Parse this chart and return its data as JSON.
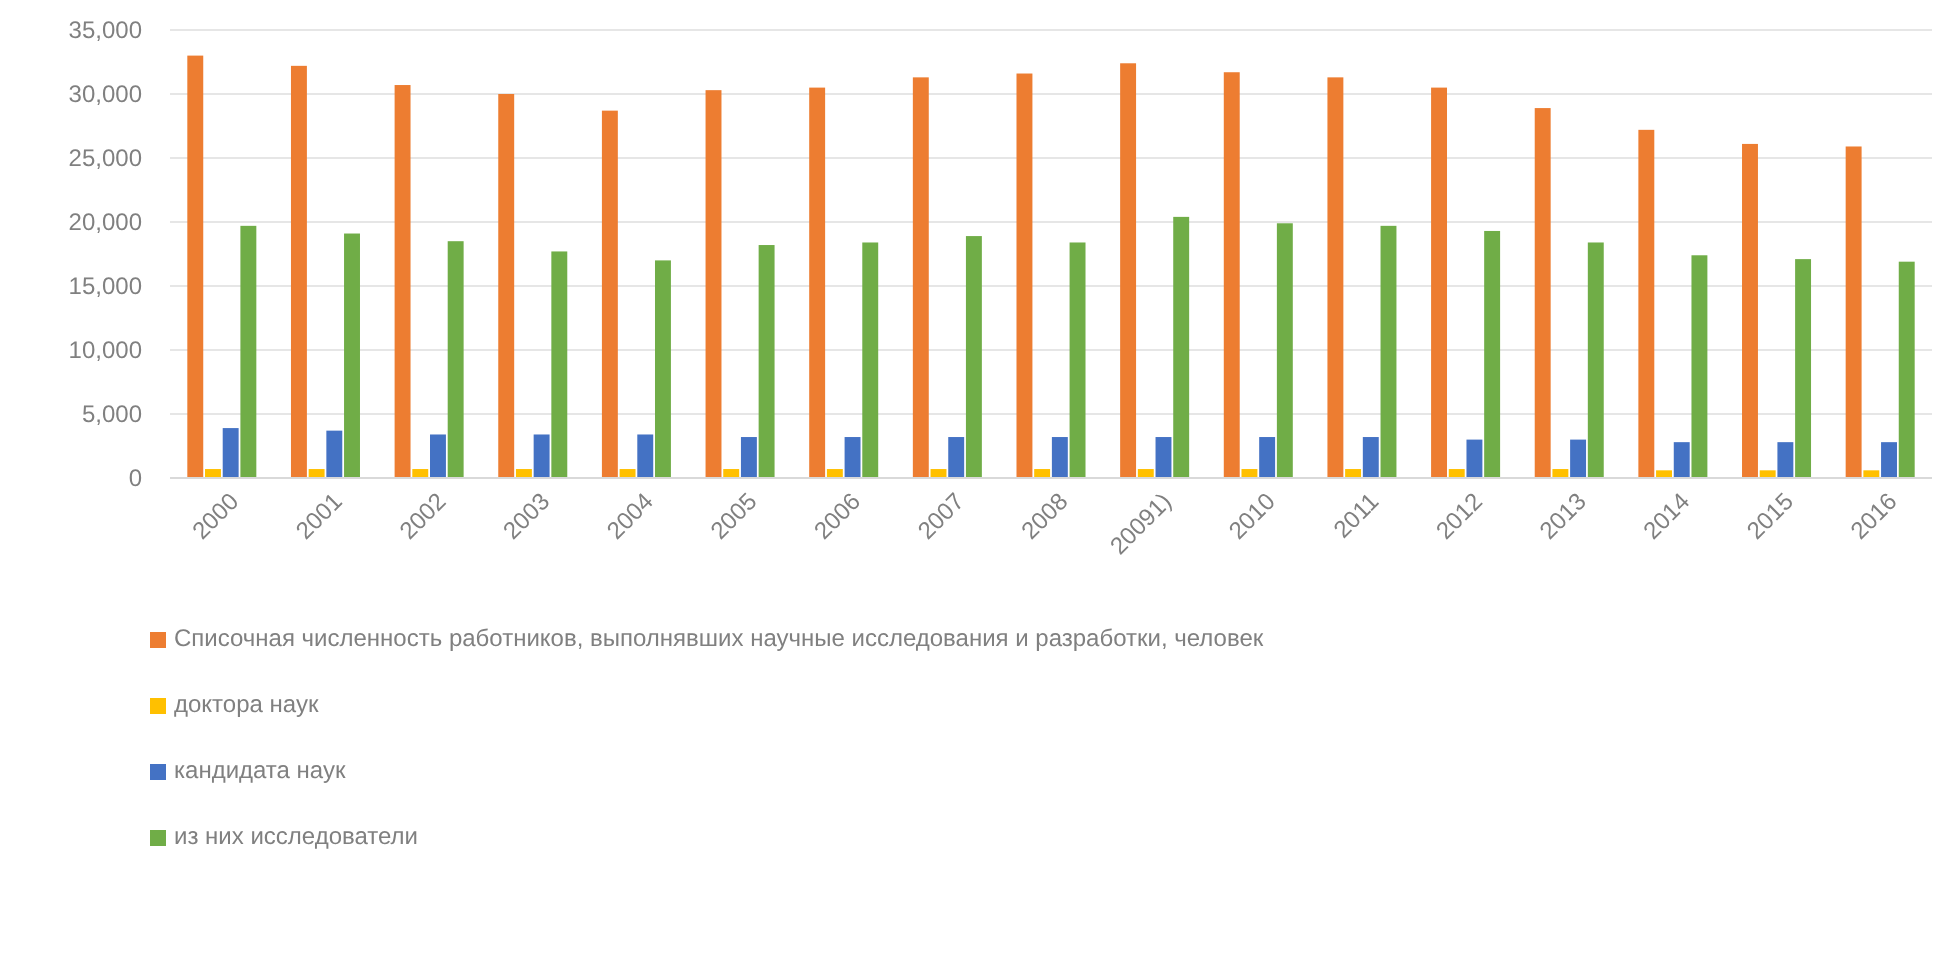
{
  "chart_data": {
    "type": "bar",
    "categories": [
      "2000",
      "2001",
      "2002",
      "2003",
      "2004",
      "2005",
      "2006",
      "2007",
      "2008",
      "20091)",
      "2010",
      "2011",
      "2012",
      "2013",
      "2014",
      "2015",
      "2016"
    ],
    "series": [
      {
        "name": "Списочная численность работников, выполнявших научные исследования и разработки, человек",
        "color": "#ed7d31",
        "values": [
          33000,
          32200,
          30700,
          30000,
          28700,
          30300,
          30500,
          31300,
          31600,
          32400,
          31700,
          31300,
          30500,
          28900,
          27200,
          26100,
          25900
        ]
      },
      {
        "name": "доктора наук",
        "color": "#ffc000",
        "values": [
          700,
          700,
          700,
          700,
          700,
          700,
          700,
          700,
          700,
          700,
          700,
          700,
          700,
          700,
          600,
          600,
          600
        ]
      },
      {
        "name": "кандидата наук",
        "color": "#4472c4",
        "values": [
          3900,
          3700,
          3400,
          3400,
          3400,
          3200,
          3200,
          3200,
          3200,
          3200,
          3200,
          3200,
          3000,
          3000,
          2800,
          2800,
          2800
        ]
      },
      {
        "name": "из них исследователи",
        "color": "#70ad47",
        "values": [
          19700,
          19100,
          18500,
          17700,
          17000,
          18200,
          18400,
          18900,
          18400,
          20400,
          19900,
          19700,
          19300,
          18400,
          17400,
          17100,
          16900
        ]
      }
    ],
    "ylim": [
      0,
      35000
    ],
    "yticks": [
      {
        "value": 0,
        "label": "0"
      },
      {
        "value": 5000,
        "label": "5,000"
      },
      {
        "value": 10000,
        "label": "10,000"
      },
      {
        "value": 15000,
        "label": "15,000"
      },
      {
        "value": 20000,
        "label": "20,000"
      },
      {
        "value": 25000,
        "label": "25,000"
      },
      {
        "value": 30000,
        "label": "30,000"
      },
      {
        "value": 35000,
        "label": "35,000"
      }
    ],
    "grid": "y",
    "legend": "bottom"
  }
}
